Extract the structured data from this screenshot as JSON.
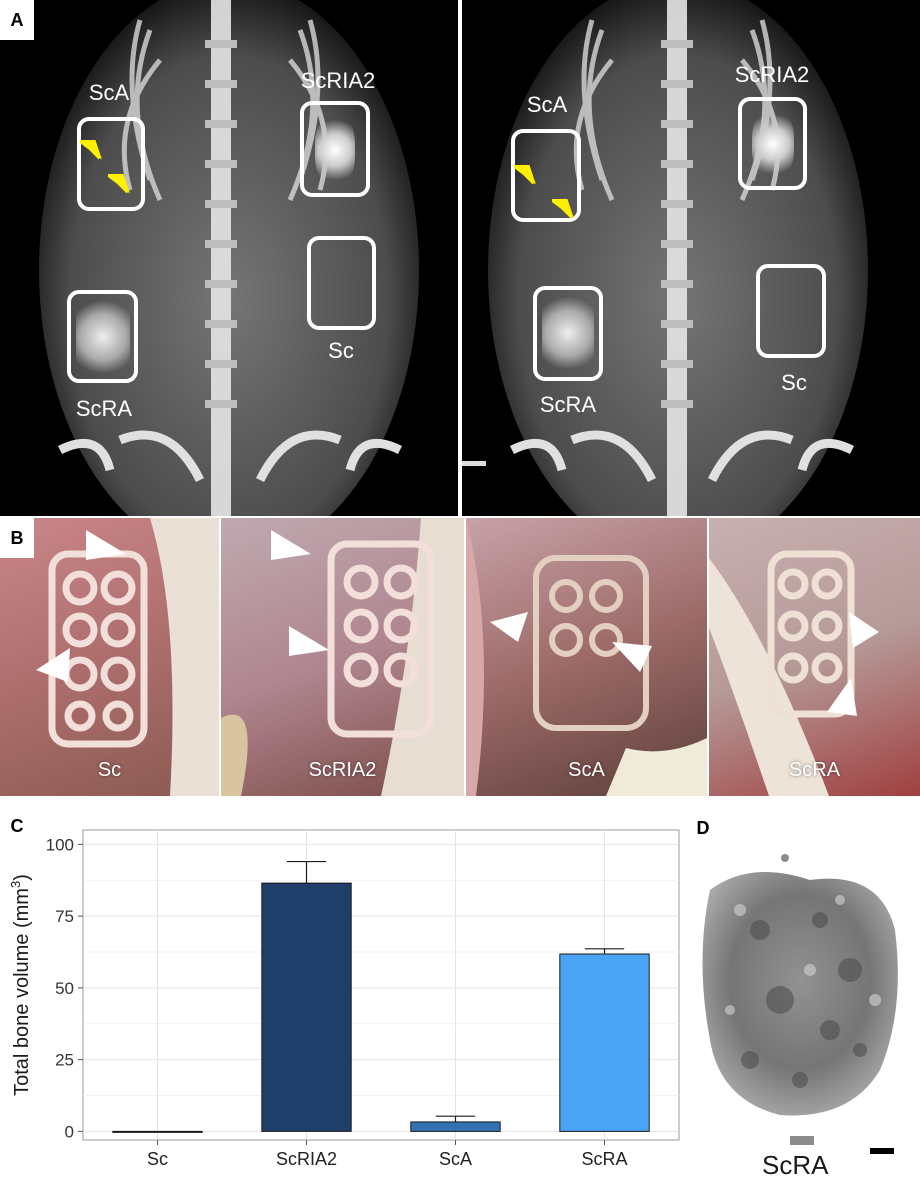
{
  "panel_a": {
    "letter": "A",
    "left_image": {
      "labels": {
        "sca": "ScA",
        "scria2": "ScRIA2",
        "scra": "ScRA",
        "sc": "Sc"
      }
    },
    "right_image": {
      "labels": {
        "sca": "ScA",
        "scria2": "ScRIA2",
        "scra": "ScRA",
        "sc": "Sc"
      }
    }
  },
  "panel_b": {
    "letter": "B",
    "photos": [
      {
        "label": "Sc"
      },
      {
        "label": "ScRIA2"
      },
      {
        "label": "ScA"
      },
      {
        "label": "ScRA"
      }
    ]
  },
  "panel_c": {
    "letter": "C"
  },
  "panel_d": {
    "letter": "D",
    "label": "ScRA"
  },
  "colors": {
    "scria2": "#1f3f6b",
    "sca": "#3470b4",
    "scra": "#4aa3f5",
    "arrow": "#ffef00"
  },
  "chart_data": {
    "type": "bar",
    "categories": [
      "Sc",
      "ScRIA2",
      "ScA",
      "ScRA"
    ],
    "values": [
      0,
      86.5,
      3.3,
      61.8
    ],
    "error_low": [
      0,
      79,
      1.3,
      60
    ],
    "error_high": [
      0,
      94,
      5.3,
      63.6
    ],
    "bar_colors": [
      "#ffffff",
      "#1f3f6b",
      "#3470b4",
      "#4aa3f5"
    ],
    "ylabel": "Total bone volume (mm",
    "ylabel_sup": "3",
    "ylabel_close": ")",
    "yticks": [
      0,
      25,
      50,
      75,
      100
    ],
    "ylim": [
      -3,
      105
    ],
    "grid": true
  }
}
